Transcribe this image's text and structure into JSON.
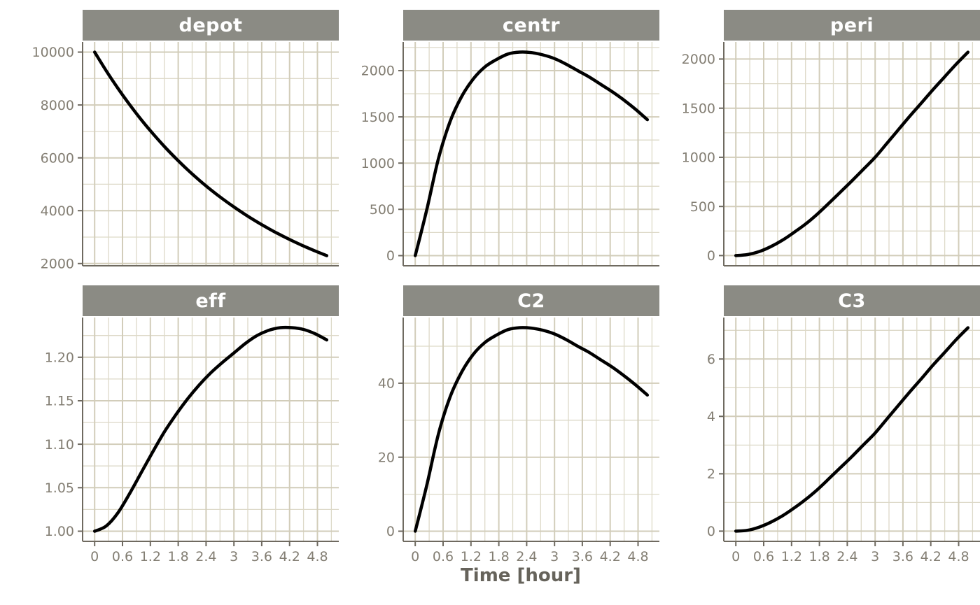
{
  "chart_data": {
    "type": "line",
    "layout": "facet_wrap 2 rows x 3 cols, free y scales, shared x axis",
    "title": "",
    "xlabel": "Time [hour]",
    "legend": "none",
    "grid": "on (major + minor, tan lines on white)",
    "x_ticks": [
      "0",
      "0.6",
      "1.2",
      "1.8",
      "2.4",
      "3",
      "3.6",
      "4.2",
      "4.8"
    ],
    "x_tick_values": [
      0,
      0.6,
      1.2,
      1.8,
      2.4,
      3,
      3.6,
      4.2,
      4.8
    ],
    "xlim": [
      -0.26,
      5.26
    ],
    "x": [
      0,
      0.25,
      0.5,
      0.75,
      1,
      1.25,
      1.5,
      1.75,
      2,
      2.25,
      2.5,
      2.75,
      3,
      3.25,
      3.5,
      3.75,
      4,
      4.25,
      4.5,
      4.75,
      5
    ],
    "panels": [
      {
        "title": "depot",
        "ylim": [
          1915,
          10385
        ],
        "y_ticks": [
          2000,
          4000,
          6000,
          8000,
          10000
        ],
        "y_tick_labels": [
          "2000",
          "4000",
          "6000",
          "8000",
          "10000"
        ],
        "values": [
          10000,
          9291,
          8633,
          8021,
          7453,
          6925,
          6434,
          5978,
          5554,
          5161,
          4795,
          4455,
          4140,
          3846,
          3574,
          3321,
          3086,
          2867,
          2664,
          2475,
          2300
        ]
      },
      {
        "title": "centr",
        "ylim": [
          -110,
          2310
        ],
        "y_ticks": [
          0,
          500,
          1000,
          1500,
          2000
        ],
        "y_tick_labels": [
          "0",
          "500",
          "1000",
          "1500",
          "2000"
        ],
        "values": [
          0,
          500,
          1050,
          1450,
          1720,
          1910,
          2040,
          2120,
          2180,
          2200,
          2195,
          2170,
          2130,
          2070,
          2000,
          1930,
          1850,
          1770,
          1680,
          1580,
          1470
        ]
      },
      {
        "title": "peri",
        "ylim": [
          -104,
          2174
        ],
        "y_ticks": [
          0,
          500,
          1000,
          1500,
          2000
        ],
        "y_tick_labels": [
          "0",
          "500",
          "1000",
          "1500",
          "2000"
        ],
        "values": [
          0,
          10,
          40,
          90,
          155,
          235,
          320,
          420,
          530,
          645,
          760,
          880,
          1000,
          1140,
          1280,
          1420,
          1555,
          1690,
          1820,
          1950,
          2070
        ]
      },
      {
        "title": "eff",
        "ylim": [
          0.9883,
          1.2457
        ],
        "y_ticks": [
          1.0,
          1.05,
          1.1,
          1.15,
          1.2
        ],
        "y_tick_labels": [
          "1.00",
          "1.05",
          "1.10",
          "1.15",
          "1.20"
        ],
        "values": [
          1.0,
          1.006,
          1.021,
          1.043,
          1.067,
          1.091,
          1.114,
          1.134,
          1.152,
          1.168,
          1.182,
          1.194,
          1.205,
          1.216,
          1.225,
          1.231,
          1.234,
          1.234,
          1.232,
          1.227,
          1.22
        ]
      },
      {
        "title": "C2",
        "ylim": [
          -2.75,
          57.75
        ],
        "y_ticks": [
          0,
          20,
          40
        ],
        "y_tick_labels": [
          "0",
          "20",
          "40"
        ],
        "values": [
          0,
          12.5,
          26.3,
          36.3,
          43,
          47.8,
          51,
          53,
          54.5,
          55,
          54.9,
          54.3,
          53.3,
          51.8,
          50,
          48.3,
          46.3,
          44.3,
          42,
          39.5,
          36.8
        ]
      },
      {
        "title": "C3",
        "ylim": [
          -0.355,
          7.445
        ],
        "y_ticks": [
          0,
          2,
          4,
          6
        ],
        "y_tick_labels": [
          "0",
          "2",
          "4",
          "6"
        ],
        "values": [
          0,
          0.03,
          0.14,
          0.31,
          0.53,
          0.8,
          1.1,
          1.44,
          1.82,
          2.21,
          2.6,
          3.01,
          3.42,
          3.9,
          4.38,
          4.86,
          5.32,
          5.79,
          6.23,
          6.68,
          7.09
        ]
      }
    ],
    "style": {
      "background": "#ffffff",
      "strip_fill": "#8b8b84",
      "strip_text": "#ffffff",
      "grid_major": "#d2cdba",
      "grid_minor": "#ddd9c8",
      "axis_line": "#6f6a60",
      "tick_text": "#837e73",
      "title_color": "#66635b",
      "curve": "#000000"
    }
  }
}
